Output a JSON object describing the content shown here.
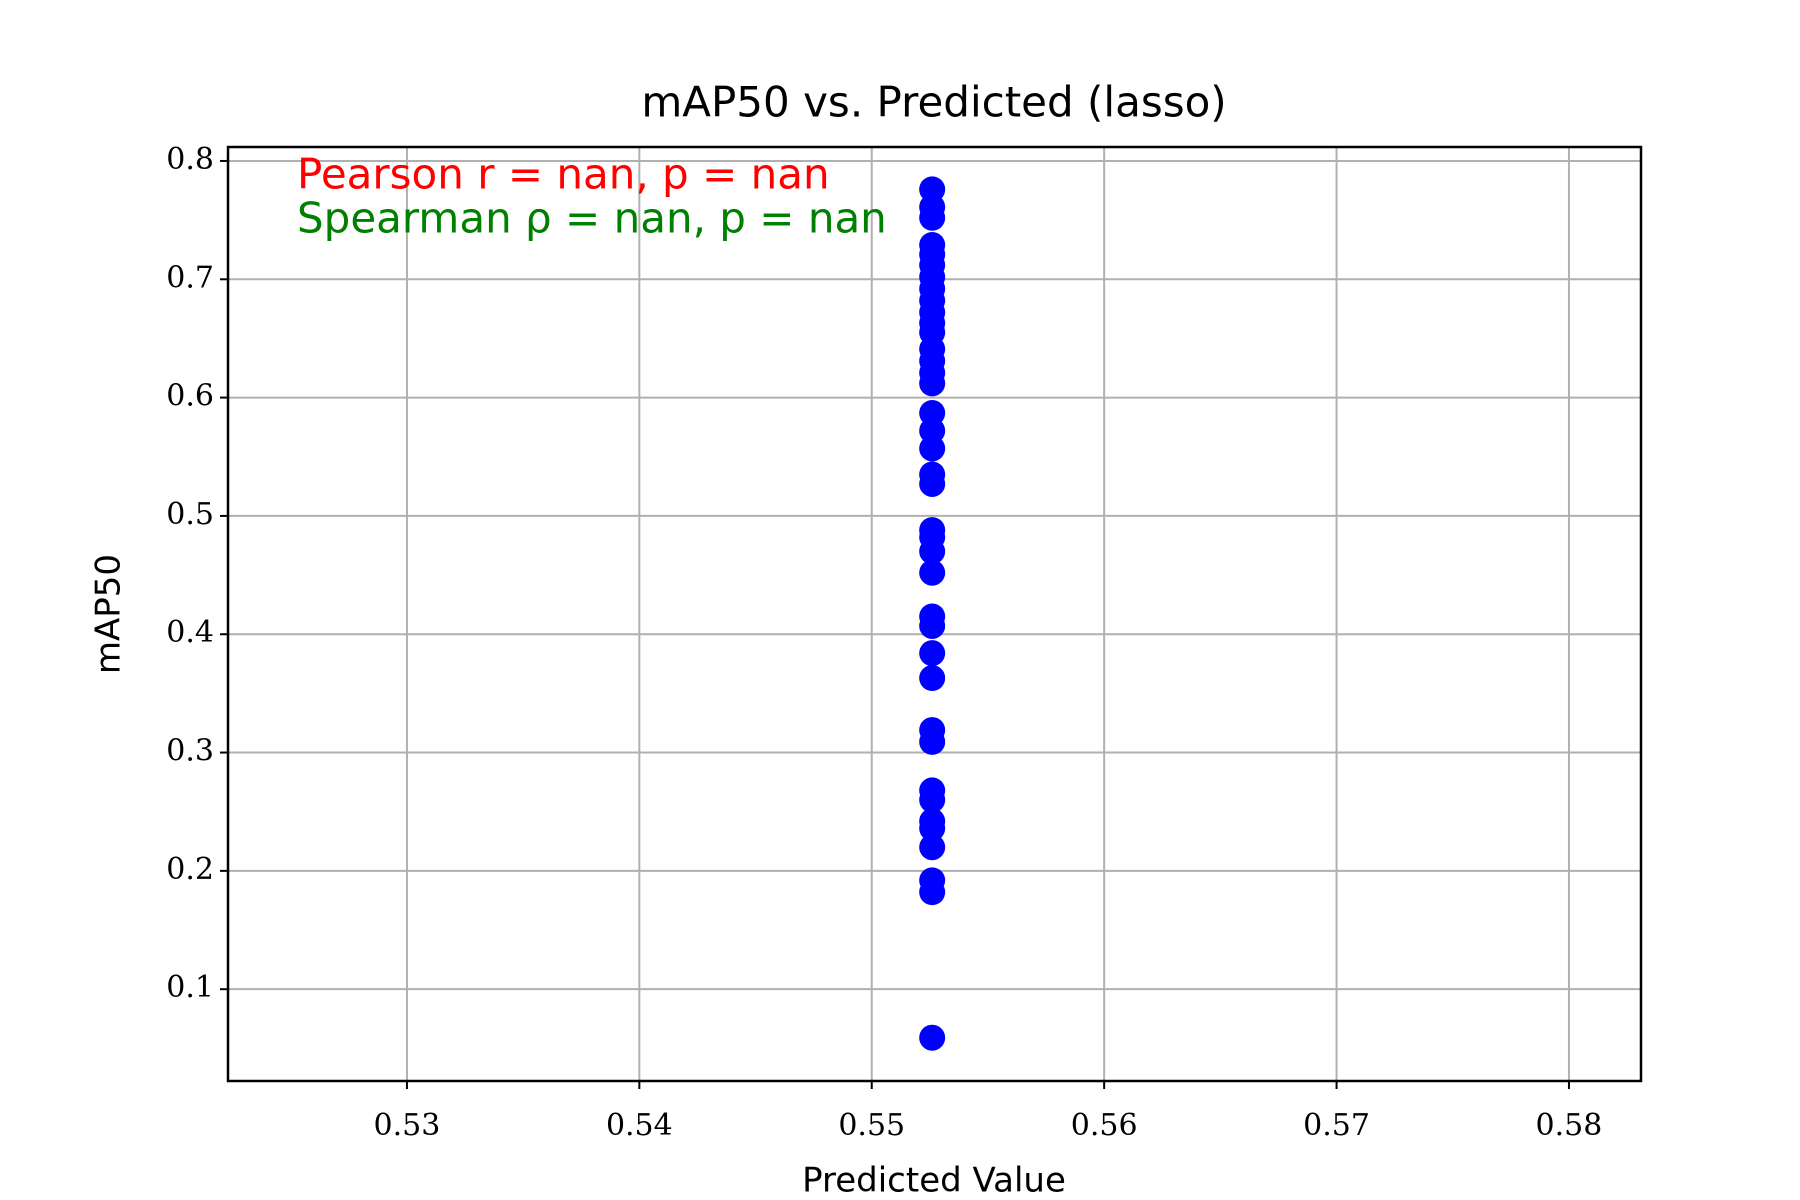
{
  "chart_data": {
    "type": "scatter",
    "title": "mAP50 vs. Predicted (lasso)",
    "x_label": "Predicted Value",
    "y_label": "mAP50",
    "annotations": [
      {
        "text": "Pearson r = nan, p = nan",
        "color": "#ff0000"
      },
      {
        "text": "Spearman ρ = nan, p = nan",
        "color": "#008000"
      }
    ],
    "series": [
      {
        "name": "mAP50",
        "color": "#0000ff",
        "x": [
          0.5526,
          0.5526,
          0.5526,
          0.5526,
          0.5526,
          0.5526,
          0.5526,
          0.5526,
          0.5526,
          0.5526,
          0.5526,
          0.5526,
          0.5526,
          0.5526,
          0.5526,
          0.5526,
          0.5526,
          0.5526,
          0.5526,
          0.5526,
          0.5526,
          0.5526,
          0.5526,
          0.5526,
          0.5526,
          0.5526,
          0.5526,
          0.5526,
          0.5526,
          0.5526,
          0.5526,
          0.5526,
          0.5526,
          0.5526,
          0.5526,
          0.5526,
          0.5526,
          0.5526,
          0.5526
        ],
        "values": [
          0.776,
          0.761,
          0.752,
          0.729,
          0.721,
          0.712,
          0.702,
          0.692,
          0.682,
          0.672,
          0.663,
          0.655,
          0.641,
          0.631,
          0.621,
          0.612,
          0.587,
          0.572,
          0.557,
          0.535,
          0.527,
          0.488,
          0.482,
          0.47,
          0.452,
          0.415,
          0.407,
          0.384,
          0.363,
          0.319,
          0.309,
          0.268,
          0.26,
          0.242,
          0.236,
          0.22,
          0.192,
          0.182,
          0.059
        ]
      }
    ],
    "xlim": [
      0.5223,
      0.5831
    ],
    "ylim": [
      0.0224,
      0.8118
    ],
    "xticks": [
      0.53,
      0.54,
      0.55,
      0.56,
      0.57,
      0.58
    ],
    "yticks": [
      0.1,
      0.2,
      0.3,
      0.4,
      0.5,
      0.6,
      0.7,
      0.8
    ],
    "grid": true
  }
}
